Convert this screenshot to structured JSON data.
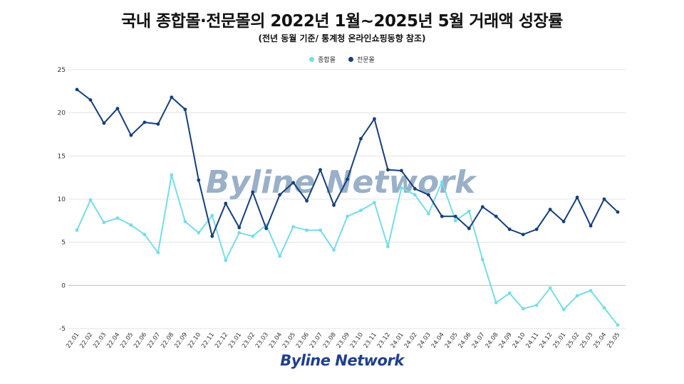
{
  "colors": {
    "series_1": "#76dde6",
    "series_2": "#153f7a",
    "grid": "#e3e3e3",
    "watermark": "#9ab0c8",
    "logo": "#1f3f8f"
  },
  "watermark_text": "Byline Network",
  "logo_text": "Byline Network",
  "chart_data": {
    "type": "line",
    "title": "국내 종합몰·전문몰의 2022년 1월~2025년 5월 거래액 성장률",
    "subtitle": "(전년 동월 기준/ 통계청 온라인쇼핑동향 참조)",
    "xlabel": "",
    "ylabel": "",
    "ylim": [
      -5,
      25
    ],
    "yticks": [
      -5,
      0,
      5,
      10,
      15,
      20,
      25
    ],
    "grid": true,
    "legend_position": "top-center",
    "categories": [
      "22.01",
      "22.02",
      "22.03",
      "22.04",
      "22.05",
      "22.06",
      "22.07",
      "22.08",
      "22.09",
      "22.10",
      "22.11",
      "22.12",
      "23.01",
      "23.02",
      "23.03",
      "23.04",
      "23.05",
      "23.06",
      "23.07",
      "23.08",
      "23.09",
      "23.10",
      "23.11",
      "23.12",
      "24.01",
      "24.02",
      "24.03",
      "24.04",
      "24.05",
      "24.06",
      "24.07",
      "24.08",
      "24.09",
      "24.10",
      "24.11",
      "24.12",
      "25.01",
      "25.02",
      "25.03",
      "25.04",
      "25.05"
    ],
    "series": [
      {
        "name": "종합몰",
        "values": [
          6.4,
          9.9,
          7.3,
          7.8,
          7.0,
          5.9,
          3.8,
          12.8,
          7.4,
          6.1,
          8.1,
          2.9,
          6.1,
          5.7,
          7.0,
          3.4,
          6.8,
          6.4,
          6.4,
          4.1,
          8.0,
          8.7,
          9.6,
          4.5,
          11.3,
          10.5,
          8.3,
          12.0,
          7.5,
          8.6,
          3.0,
          -2.0,
          -0.9,
          -2.7,
          -2.3,
          -0.3,
          -2.8,
          -1.2,
          -0.6,
          -2.6,
          -4.6
        ]
      },
      {
        "name": "전문몰",
        "values": [
          22.7,
          21.5,
          18.8,
          20.5,
          17.4,
          18.9,
          18.7,
          21.8,
          20.4,
          12.2,
          5.7,
          9.5,
          6.7,
          10.8,
          6.6,
          10.5,
          11.9,
          9.8,
          13.4,
          9.3,
          12.3,
          17.0,
          19.3,
          13.4,
          13.3,
          11.2,
          10.5,
          8.0,
          8.0,
          6.6,
          9.1,
          8.0,
          6.5,
          5.9,
          6.5,
          8.8,
          7.4,
          10.2,
          6.9,
          10.0,
          8.5
        ]
      }
    ]
  }
}
